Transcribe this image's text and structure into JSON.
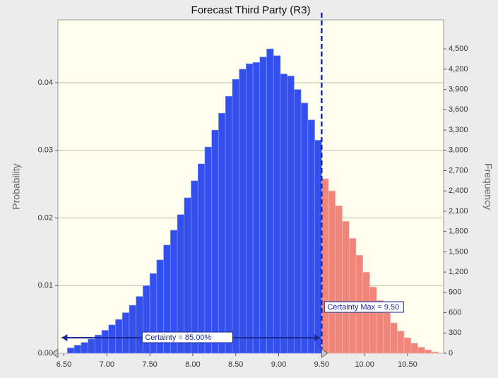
{
  "chart_data": {
    "type": "histogram",
    "title": "Forecast Third Party (R3)",
    "ylabel": "Probability",
    "y2label": "Frequency",
    "bins": [
      6.54,
      6.62,
      6.7,
      6.78,
      6.86,
      6.94,
      7.02,
      7.1,
      7.18,
      7.26,
      7.34,
      7.42,
      7.5,
      7.58,
      7.66,
      7.74,
      7.82,
      7.9,
      7.98,
      8.06,
      8.14,
      8.22,
      8.3,
      8.38,
      8.46,
      8.54,
      8.62,
      8.7,
      8.78,
      8.86,
      8.94,
      9.02,
      9.1,
      9.18,
      9.26,
      9.34,
      9.42,
      9.5,
      9.58,
      9.66,
      9.74,
      9.82,
      9.9,
      9.98,
      10.06,
      10.14,
      10.22,
      10.3,
      10.38,
      10.46,
      10.54,
      10.62,
      10.7,
      10.78,
      10.86
    ],
    "values": [
      0.0008,
      0.0012,
      0.0016,
      0.0021,
      0.0027,
      0.0034,
      0.0042,
      0.005,
      0.006,
      0.0071,
      0.0084,
      0.01,
      0.0118,
      0.0138,
      0.016,
      0.0182,
      0.0205,
      0.023,
      0.0255,
      0.028,
      0.0305,
      0.033,
      0.0355,
      0.038,
      0.0405,
      0.042,
      0.0428,
      0.043,
      0.0438,
      0.045,
      0.044,
      0.0413,
      0.041,
      0.039,
      0.037,
      0.0345,
      0.0315,
      0.0258,
      0.024,
      0.0218,
      0.0195,
      0.017,
      0.0145,
      0.012,
      0.0098,
      0.0078,
      0.006,
      0.0045,
      0.0033,
      0.0023,
      0.0015,
      0.0009,
      0.0005,
      0.0002
    ],
    "color": "#3350ee",
    "tail_color": "#f2857a",
    "certainty_max": {
      "value": 9.5,
      "label": "Certainty Max = 9.50"
    },
    "certainty": {
      "value": 85,
      "label": "Certainty = 85.00%"
    },
    "xlim": [
      6.43,
      10.92
    ],
    "ylim": [
      0,
      0.0493
    ],
    "y2lim": [
      0,
      4930
    ],
    "xticks": [
      {
        "value": 6.5,
        "label": "6.50"
      },
      {
        "value": 7,
        "label": "7.00"
      },
      {
        "value": 7.5,
        "label": "7.50"
      },
      {
        "value": 8,
        "label": "8.00"
      },
      {
        "value": 8.5,
        "label": "8.50"
      },
      {
        "value": 9,
        "label": "9.00"
      },
      {
        "value": 9.5,
        "label": "9.50"
      },
      {
        "value": 10,
        "label": "10.00"
      },
      {
        "value": 10.5,
        "label": "10.50"
      }
    ],
    "yticks": [
      {
        "value": 0,
        "label": "0.00"
      },
      0.01,
      0.02,
      0.03,
      0.04
    ],
    "y2ticks": [
      0,
      300,
      600,
      900,
      {
        "value": 1200,
        "label": "1,200"
      },
      {
        "value": 1500,
        "label": "1,500"
      },
      {
        "value": 1800,
        "label": "1,800"
      },
      {
        "value": 2100,
        "label": "2,100"
      },
      {
        "value": 2400,
        "label": "2,400"
      },
      {
        "value": 2700,
        "label": "2,700"
      },
      {
        "value": 3000,
        "label": "3,000"
      },
      {
        "value": 3300,
        "label": "3,300"
      },
      {
        "value": 3600,
        "label": "3,600"
      },
      {
        "value": 3900,
        "label": "3,900"
      },
      {
        "value": 4200,
        "label": "4,200"
      },
      {
        "value": 4500,
        "label": "4,500"
      }
    ],
    "grid": true
  }
}
